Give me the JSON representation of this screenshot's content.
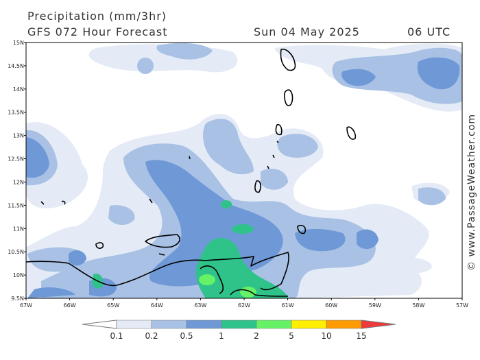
{
  "header": {
    "title": "Precipitation (mm/3hr)",
    "subtitle": "GFS 072 Hour Forecast",
    "date": "Sun 04 May 2025",
    "time": "06 UTC"
  },
  "credit": "© www.PassageWeather.com",
  "map": {
    "lon_range": [
      -67,
      -57
    ],
    "lat_range": [
      9.5,
      15
    ],
    "lat_ticks": [
      "15N",
      "14.5N",
      "14N",
      "13.5N",
      "13N",
      "12.5N",
      "12N",
      "11.5N",
      "11N",
      "10.5N",
      "10N",
      "9.5N"
    ],
    "lon_ticks": [
      "67W",
      "66W",
      "65W",
      "64W",
      "63W",
      "62W",
      "61W",
      "60W",
      "59W",
      "58W",
      "57W"
    ]
  },
  "legend": {
    "labels": [
      "0.1",
      "0.2",
      "0.5",
      "1",
      "2",
      "5",
      "10",
      "15"
    ],
    "colors": [
      "#ffffff",
      "#e4ebf6",
      "#a8c1e4",
      "#6f98d6",
      "#2fc38a",
      "#66f266",
      "#ffee00",
      "#ff9a00",
      "#ee3a3a"
    ]
  }
}
